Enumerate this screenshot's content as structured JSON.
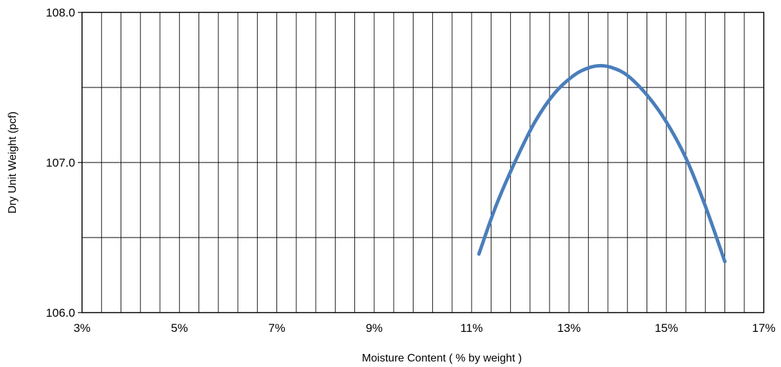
{
  "chart_data": {
    "type": "line",
    "title": "",
    "xlabel": "Moisture Content ( % by weight )",
    "ylabel": "Dry Unit Weight (pcf)",
    "xlim": [
      3,
      17
    ],
    "ylim": [
      106.0,
      108.0
    ],
    "x_ticks": [
      3,
      5,
      7,
      9,
      11,
      13,
      15,
      17
    ],
    "x_tick_labels": [
      "3%",
      "5%",
      "7%",
      "9%",
      "11%",
      "13%",
      "15%",
      "17%"
    ],
    "y_ticks": [
      106.0,
      107.0,
      108.0
    ],
    "y_tick_labels": [
      "106.0",
      "107.0",
      "108.0"
    ],
    "y_gridlines": [
      106.5,
      107.0,
      107.5
    ],
    "x_gridline_step": 0.4,
    "grid": true,
    "legend": "none",
    "series": [
      {
        "color": "#4A7EBB",
        "x": [
          11.15,
          11.5,
          11.9,
          12.3,
          12.7,
          13.1,
          13.4,
          13.65,
          13.9,
          14.2,
          14.6,
          15.0,
          15.4,
          15.8,
          16.2
        ],
        "y": [
          106.39,
          106.71,
          107.01,
          107.27,
          107.46,
          107.58,
          107.63,
          107.645,
          107.63,
          107.58,
          107.45,
          107.27,
          107.03,
          106.71,
          106.34
        ]
      }
    ]
  }
}
